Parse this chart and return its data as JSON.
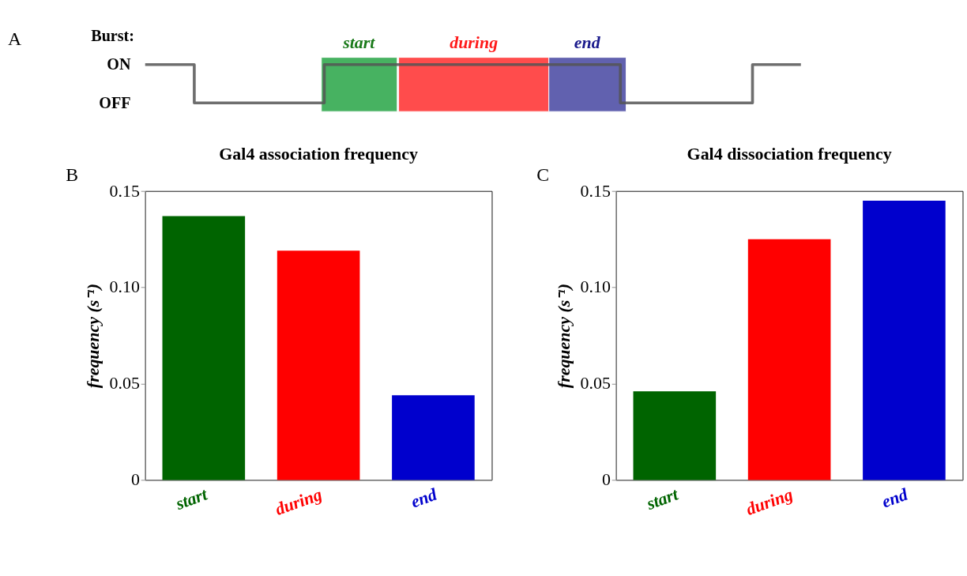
{
  "chart_data": [
    {
      "type": "other",
      "ylabel": "Burst:",
      "annotations": [
        "A",
        "ON",
        "OFF",
        "start",
        "during",
        "end"
      ]
    },
    {
      "type": "bar",
      "title": "Gal4 association frequency",
      "ylabel": "frequency (s⁻¹)",
      "annotations": [
        "B"
      ],
      "categories": [
        "start",
        "during",
        "end"
      ],
      "values": [
        0.137,
        0.119,
        0.044
      ],
      "colors": [
        "#006400",
        "#ff0000",
        "#0000cd"
      ],
      "ylim": [
        0,
        0.15
      ],
      "yticks": [
        0,
        0.05,
        {
          "value": 0.1,
          "label": "0.10"
        },
        0.15
      ],
      "grid": false
    },
    {
      "type": "bar",
      "title": "Gal4 dissociation frequency",
      "ylabel": "frequency (s⁻¹)",
      "annotations": [
        "C"
      ],
      "categories": [
        "start",
        "during",
        "end"
      ],
      "values": [
        0.046,
        0.125,
        0.145
      ],
      "colors": [
        "#006400",
        "#ff0000",
        "#0000cd"
      ],
      "ylim": [
        0,
        0.15
      ],
      "yticks": [
        0,
        0.05,
        {
          "value": 0.1,
          "label": "0.10"
        },
        0.15
      ],
      "grid": false
    }
  ]
}
